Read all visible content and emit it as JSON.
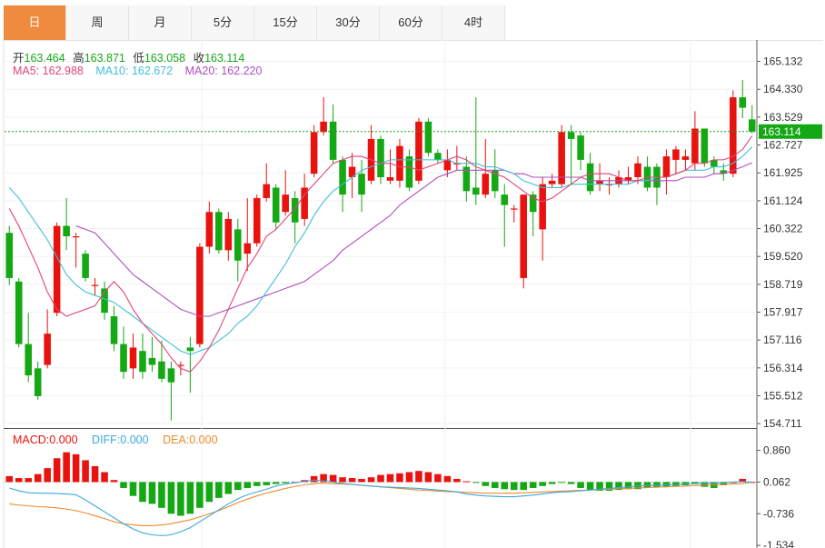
{
  "tabs": [
    "日",
    "周",
    "月",
    "5分",
    "15分",
    "30分",
    "60分",
    "4时"
  ],
  "active_tab": 0,
  "ohlc": {
    "open_label": "开",
    "open": "163.464",
    "high_label": "高",
    "high": "163.871",
    "low_label": "低",
    "low": "163.058",
    "close_label": "收",
    "close": "163.114"
  },
  "ma": {
    "ma5_label": "MA5:",
    "ma5": "162.988",
    "ma10_label": "MA10:",
    "ma10": "162.672",
    "ma20_label": "MA20:",
    "ma20": "162.220"
  },
  "macd": {
    "macd_label": "MACD:",
    "macd": "0.000",
    "diff_label": "DIFF:",
    "diff": "0.000",
    "dea_label": "DEA:",
    "dea": "0.000"
  },
  "colors": {
    "up": "#e8130f",
    "down": "#14a814",
    "ma5": "#e2447a",
    "ma10": "#3fc0d8",
    "ma20": "#b04fc0",
    "diff": "#3aa8e0",
    "dea": "#f08a2a",
    "price_tag": "#14a814",
    "active_tab": "#f08a3e"
  },
  "chart_data": {
    "type": "candlestick",
    "y_ticks": [
      "165.132",
      "164.330",
      "163.529",
      "162.727",
      "161.925",
      "161.124",
      "160.322",
      "159.520",
      "158.719",
      "157.917",
      "157.116",
      "156.314",
      "155.512",
      "154.711"
    ],
    "ylim": [
      154.61,
      165.33
    ],
    "current_price": "163.114",
    "candles": [
      [
        160.2,
        158.9,
        160.4,
        158.7
      ],
      [
        158.8,
        157.0,
        158.9,
        156.9
      ],
      [
        157.0,
        156.1,
        157.9,
        155.9
      ],
      [
        156.3,
        155.5,
        156.5,
        155.4
      ],
      [
        156.4,
        157.3,
        158.0,
        156.3
      ],
      [
        157.9,
        160.4,
        160.5,
        157.8
      ],
      [
        160.4,
        160.1,
        161.2,
        159.7
      ],
      [
        160.1,
        160.1,
        160.2,
        159.2
      ],
      [
        159.6,
        158.9,
        159.7,
        158.8
      ],
      [
        158.7,
        158.7,
        158.9,
        158.4
      ],
      [
        158.6,
        157.9,
        158.8,
        157.7
      ],
      [
        157.8,
        157.0,
        158.1,
        156.8
      ],
      [
        157.0,
        156.2,
        157.5,
        156.0
      ],
      [
        156.3,
        156.9,
        157.3,
        156.0
      ],
      [
        156.8,
        156.2,
        157.3,
        156.0
      ],
      [
        156.6,
        156.4,
        157.2,
        156.2
      ],
      [
        156.5,
        156.0,
        157.1,
        155.9
      ],
      [
        156.3,
        155.9,
        156.5,
        154.8
      ],
      [
        156.4,
        156.4,
        156.5,
        156.1
      ],
      [
        156.9,
        156.8,
        157.2,
        155.6
      ],
      [
        157.0,
        159.8,
        159.9,
        156.9
      ],
      [
        159.8,
        160.8,
        161.1,
        159.6
      ],
      [
        160.8,
        159.7,
        160.9,
        159.6
      ],
      [
        159.7,
        160.6,
        160.8,
        159.4
      ],
      [
        160.3,
        159.4,
        160.6,
        158.8
      ],
      [
        159.6,
        159.9,
        161.2,
        159.1
      ],
      [
        159.9,
        161.2,
        161.3,
        159.8
      ],
      [
        161.2,
        161.6,
        162.2,
        161.1
      ],
      [
        161.5,
        160.5,
        161.6,
        160.3
      ],
      [
        160.8,
        161.3,
        162.0,
        160.7
      ],
      [
        161.2,
        160.5,
        161.4,
        159.9
      ],
      [
        160.6,
        161.5,
        161.9,
        160.4
      ],
      [
        161.9,
        163.1,
        163.3,
        161.8
      ],
      [
        163.1,
        163.4,
        164.1,
        163.0
      ],
      [
        163.4,
        162.3,
        163.9,
        162.2
      ],
      [
        162.3,
        161.3,
        162.4,
        160.8
      ],
      [
        161.8,
        162.1,
        162.5,
        161.2
      ],
      [
        161.9,
        161.3,
        162.3,
        160.8
      ],
      [
        161.7,
        162.9,
        163.3,
        161.6
      ],
      [
        162.9,
        161.8,
        163.0,
        161.6
      ],
      [
        161.7,
        161.8,
        162.6,
        161.6
      ],
      [
        161.7,
        162.7,
        162.9,
        161.5
      ],
      [
        162.4,
        161.5,
        162.6,
        161.4
      ],
      [
        161.7,
        163.4,
        163.5,
        161.6
      ],
      [
        163.4,
        162.5,
        163.5,
        162.4
      ],
      [
        162.5,
        162.3,
        162.6,
        162.2
      ],
      [
        162.0,
        162.3,
        162.6,
        161.8
      ],
      [
        162.2,
        162.2,
        162.7,
        162.0
      ],
      [
        162.1,
        161.4,
        162.4,
        161.1
      ],
      [
        161.5,
        161.3,
        164.1,
        161.0
      ],
      [
        161.3,
        161.9,
        162.9,
        161.2
      ],
      [
        162.0,
        161.4,
        162.6,
        161.2
      ],
      [
        161.3,
        161.0,
        161.6,
        159.8
      ],
      [
        160.9,
        160.9,
        161.0,
        160.5
      ],
      [
        158.9,
        161.3,
        161.3,
        158.6
      ],
      [
        161.3,
        160.8,
        161.4,
        160.1
      ],
      [
        160.3,
        161.6,
        161.8,
        159.4
      ],
      [
        161.6,
        161.7,
        161.9,
        161.5
      ],
      [
        161.6,
        163.1,
        163.3,
        161.5
      ],
      [
        163.1,
        162.9,
        163.3,
        161.6
      ],
      [
        163.0,
        162.3,
        163.1,
        162.0
      ],
      [
        162.2,
        161.4,
        162.5,
        161.3
      ],
      [
        161.6,
        161.7,
        162.2,
        161.4
      ],
      [
        161.6,
        161.6,
        161.8,
        161.3
      ],
      [
        161.6,
        161.8,
        162.0,
        161.5
      ],
      [
        161.7,
        161.8,
        162.1,
        161.6
      ],
      [
        161.8,
        162.2,
        162.4,
        161.6
      ],
      [
        162.1,
        161.5,
        162.4,
        161.4
      ],
      [
        162.1,
        161.5,
        162.2,
        161.0
      ],
      [
        161.8,
        162.4,
        162.6,
        161.3
      ],
      [
        162.3,
        162.6,
        162.7,
        161.9
      ],
      [
        162.3,
        162.4,
        162.6,
        162.0
      ],
      [
        162.2,
        163.2,
        163.7,
        162.0
      ],
      [
        163.2,
        162.2,
        163.2,
        162.1
      ],
      [
        162.3,
        162.1,
        162.4,
        161.9
      ],
      [
        162.0,
        161.9,
        162.2,
        161.7
      ],
      [
        161.9,
        164.1,
        164.3,
        161.8
      ],
      [
        164.1,
        163.8,
        164.6,
        163.5
      ],
      [
        163.464,
        163.114,
        163.871,
        163.058
      ]
    ],
    "ma5": [
      160.9,
      160.4,
      159.8,
      159.2,
      158.5,
      158.0,
      157.8,
      157.9,
      158.0,
      158.1,
      158.5,
      158.8,
      158.5,
      158.0,
      157.6,
      157.3,
      157.0,
      156.6,
      156.3,
      156.2,
      156.5,
      156.9,
      157.4,
      158.0,
      158.6,
      159.2,
      159.6,
      160.1,
      160.3,
      160.6,
      160.9,
      161.3,
      161.6,
      161.9,
      162.2,
      162.3,
      162.4,
      162.4,
      162.3,
      162.2,
      162.2,
      162.1,
      162.1,
      162.0,
      162.1,
      162.2,
      162.3,
      162.4,
      162.3,
      162.1,
      162.0,
      161.9,
      161.8,
      161.6,
      161.4,
      161.2,
      161.1,
      161.2,
      161.4,
      161.6,
      161.8,
      161.9,
      161.9,
      161.9,
      161.8,
      161.7,
      161.7,
      161.8,
      161.8,
      161.8,
      161.9,
      162.0,
      162.2,
      162.2,
      162.3,
      162.3,
      162.4,
      162.6,
      162.988
    ],
    "ma10": [
      161.5,
      161.2,
      160.8,
      160.4,
      160.0,
      159.5,
      159.0,
      158.7,
      158.5,
      158.4,
      158.3,
      158.2,
      158.0,
      157.8,
      157.6,
      157.4,
      157.2,
      157.0,
      156.8,
      156.7,
      156.8,
      156.9,
      157.1,
      157.3,
      157.6,
      157.8,
      158.1,
      158.5,
      158.9,
      159.3,
      159.8,
      160.2,
      160.7,
      161.1,
      161.4,
      161.6,
      161.8,
      162.0,
      162.1,
      162.2,
      162.3,
      162.3,
      162.3,
      162.3,
      162.3,
      162.3,
      162.3,
      162.2,
      162.2,
      162.2,
      162.1,
      162.1,
      162.0,
      161.9,
      161.7,
      161.6,
      161.5,
      161.5,
      161.5,
      161.6,
      161.6,
      161.6,
      161.6,
      161.6,
      161.6,
      161.6,
      161.7,
      161.7,
      161.8,
      161.8,
      161.9,
      162.0,
      162.0,
      162.0,
      162.1,
      162.1,
      162.2,
      162.4,
      162.672
    ],
    "ma20": [
      null,
      null,
      null,
      null,
      null,
      null,
      null,
      160.4,
      160.3,
      160.2,
      159.9,
      159.6,
      159.3,
      159.0,
      158.8,
      158.6,
      158.4,
      158.2,
      158.0,
      157.9,
      157.8,
      157.8,
      157.9,
      158.0,
      158.1,
      158.2,
      158.3,
      158.4,
      158.5,
      158.6,
      158.7,
      158.8,
      159.0,
      159.2,
      159.4,
      159.7,
      159.9,
      160.1,
      160.3,
      160.5,
      160.7,
      161.0,
      161.2,
      161.4,
      161.6,
      161.8,
      161.9,
      162.0,
      162.0,
      162.0,
      162.0,
      162.0,
      162.0,
      161.9,
      161.9,
      161.8,
      161.8,
      161.8,
      161.8,
      161.8,
      161.8,
      161.7,
      161.7,
      161.7,
      161.7,
      161.7,
      161.7,
      161.7,
      161.7,
      161.7,
      161.7,
      161.8,
      161.8,
      161.8,
      161.9,
      161.9,
      162.0,
      162.1,
      162.22
    ],
    "macd_ticks": [
      "0.860",
      "0.062",
      "-0.736",
      "-1.534"
    ],
    "macd_ylim": [
      -1.6,
      1.4
    ],
    "macd_hist": [
      0.15,
      0.1,
      0.1,
      0.2,
      0.35,
      0.6,
      0.75,
      0.7,
      0.55,
      0.4,
      0.25,
      0.05,
      -0.15,
      -0.35,
      -0.5,
      -0.55,
      -0.65,
      -0.8,
      -0.85,
      -0.8,
      -0.65,
      -0.5,
      -0.4,
      -0.3,
      -0.2,
      -0.15,
      -0.1,
      -0.08,
      -0.05,
      -0.03,
      0.0,
      0.05,
      0.15,
      0.2,
      0.18,
      0.12,
      0.1,
      0.08,
      0.12,
      0.18,
      0.2,
      0.22,
      0.25,
      0.28,
      0.25,
      0.2,
      0.15,
      0.08,
      0.02,
      -0.02,
      -0.1,
      -0.15,
      -0.18,
      -0.2,
      -0.2,
      -0.15,
      -0.1,
      -0.05,
      -0.02,
      -0.05,
      -0.15,
      -0.2,
      -0.22,
      -0.22,
      -0.2,
      -0.18,
      -0.18,
      -0.15,
      -0.13,
      -0.12,
      -0.1,
      -0.08,
      -0.05,
      -0.12,
      -0.15,
      -0.08,
      0.0,
      0.08,
      0.0
    ],
    "diff": [
      -0.15,
      -0.22,
      -0.27,
      -0.28,
      -0.28,
      -0.29,
      -0.3,
      -0.32,
      -0.45,
      -0.6,
      -0.75,
      -0.9,
      -1.05,
      -1.18,
      -1.28,
      -1.33,
      -1.35,
      -1.33,
      -1.25,
      -1.15,
      -1.0,
      -0.85,
      -0.7,
      -0.55,
      -0.42,
      -0.32,
      -0.25,
      -0.18,
      -0.1,
      -0.05,
      -0.02,
      0.02,
      0.05,
      0.03,
      0.0,
      -0.03,
      -0.06,
      -0.08,
      -0.1,
      -0.12,
      -0.13,
      -0.14,
      -0.15,
      -0.16,
      -0.18,
      -0.2,
      -0.22,
      -0.25,
      -0.3,
      -0.33,
      -0.35,
      -0.36,
      -0.37,
      -0.37,
      -0.35,
      -0.33,
      -0.3,
      -0.27,
      -0.25,
      -0.24,
      -0.22,
      -0.2,
      -0.18,
      -0.16,
      -0.14,
      -0.12,
      -0.1,
      -0.09,
      -0.08,
      -0.07,
      -0.06,
      -0.05,
      -0.04,
      -0.03,
      -0.02,
      -0.01,
      0.0,
      0.01,
      0.0
    ],
    "dea": [
      -0.55,
      -0.58,
      -0.6,
      -0.62,
      -0.63,
      -0.65,
      -0.68,
      -0.72,
      -0.78,
      -0.85,
      -0.92,
      -1.0,
      -1.05,
      -1.08,
      -1.1,
      -1.1,
      -1.08,
      -1.05,
      -1.0,
      -0.95,
      -0.88,
      -0.8,
      -0.72,
      -0.62,
      -0.52,
      -0.43,
      -0.35,
      -0.28,
      -0.22,
      -0.16,
      -0.11,
      -0.07,
      -0.04,
      -0.03,
      -0.04,
      -0.05,
      -0.06,
      -0.08,
      -0.1,
      -0.12,
      -0.14,
      -0.16,
      -0.18,
      -0.2,
      -0.21,
      -0.23,
      -0.24,
      -0.25,
      -0.26,
      -0.27,
      -0.28,
      -0.28,
      -0.28,
      -0.28,
      -0.27,
      -0.26,
      -0.25,
      -0.24,
      -0.23,
      -0.22,
      -0.21,
      -0.2,
      -0.19,
      -0.18,
      -0.17,
      -0.16,
      -0.15,
      -0.14,
      -0.13,
      -0.12,
      -0.11,
      -0.1,
      -0.09,
      -0.08,
      -0.07,
      -0.06,
      -0.05,
      -0.04,
      0.0
    ]
  }
}
